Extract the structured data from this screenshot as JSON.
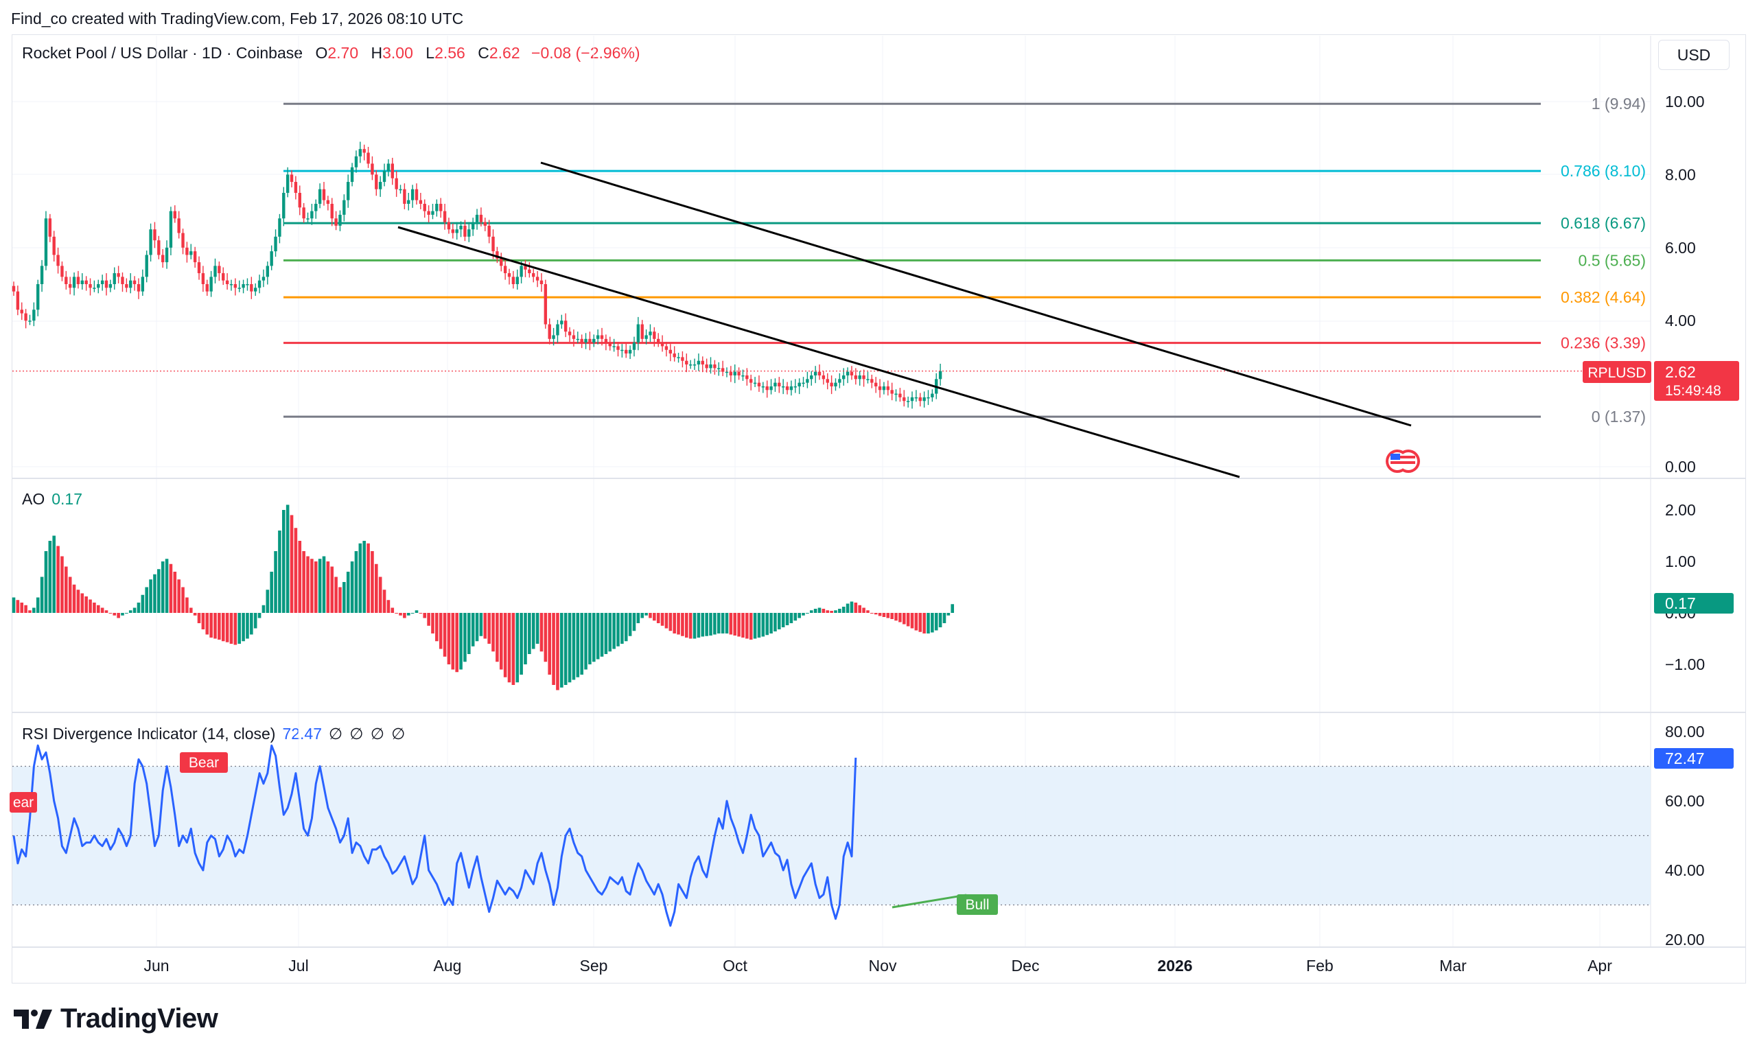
{
  "header": {
    "created_by": "Find_co created with TradingView.com, Feb 17, 2026 08:10 UTC",
    "symbol_title": "Rocket Pool / US Dollar · 1D · Coinbase",
    "ohlc": {
      "o_label": "O",
      "o": "2.70",
      "h_label": "H",
      "h": "3.00",
      "l_label": "L",
      "l": "2.56",
      "c_label": "C",
      "c": "2.62",
      "change": "−0.08 (−2.96%)"
    },
    "currency_button": "USD"
  },
  "price_pane": {
    "axis_ticks": [
      "10.00",
      "8.00",
      "6.00",
      "4.00",
      "0.00"
    ],
    "symbol_tag": "RPLUSD",
    "last_price": "2.62",
    "countdown": "15:49:48",
    "fib_levels": [
      {
        "label": "1 (9.94)",
        "value": 9.94,
        "color": "#787b86"
      },
      {
        "label": "0.786 (8.10)",
        "value": 8.1,
        "color": "#00bcd4"
      },
      {
        "label": "0.618 (6.67)",
        "value": 6.67,
        "color": "#089981"
      },
      {
        "label": "0.5 (5.65)",
        "value": 5.65,
        "color": "#4caf50"
      },
      {
        "label": "0.382 (4.64)",
        "value": 4.64,
        "color": "#ff9800"
      },
      {
        "label": "0.236 (3.39)",
        "value": 3.39,
        "color": "#f23645"
      },
      {
        "label": "0 (1.37)",
        "value": 1.37,
        "color": "#787b86"
      }
    ]
  },
  "ao_pane": {
    "title": "AO",
    "value": "0.17",
    "axis_ticks": [
      "2.00",
      "1.00",
      "0.00",
      "−1.00"
    ]
  },
  "rsi_pane": {
    "title": "RSI Divergence Indicator (14, close)",
    "value": "72.47",
    "extra": "∅ ∅ ∅ ∅",
    "axis_ticks": [
      "80.00",
      "60.00",
      "40.00",
      "20.00"
    ],
    "labels": {
      "bear_left": "ear",
      "bear": "Bear",
      "bull": "Bull"
    }
  },
  "time_axis": [
    "Jun",
    "Jul",
    "Aug",
    "Sep",
    "Oct",
    "Nov",
    "Dec",
    "2026",
    "Feb",
    "Mar",
    "Apr"
  ],
  "brand": "TradingView",
  "colors": {
    "up": "#089981",
    "down": "#f23645",
    "rsi": "#2962ff",
    "trend": "#000000"
  },
  "chart_data": [
    {
      "type": "candlestick",
      "title": "Rocket Pool / US Dollar · 1D · Coinbase",
      "ylim": [
        0,
        10
      ],
      "close": [
        4.8,
        4.3,
        4.2,
        4.0,
        4.0,
        4.3,
        5.0,
        5.5,
        6.8,
        6.3,
        5.8,
        5.5,
        5.2,
        5.0,
        4.9,
        5.2,
        5.0,
        5.1,
        5.0,
        4.9,
        4.9,
        5.0,
        5.1,
        4.9,
        5.0,
        5.3,
        5.2,
        5.0,
        4.9,
        5.1,
        5.0,
        4.8,
        5.2,
        5.8,
        6.5,
        6.2,
        5.8,
        5.6,
        6.0,
        7.0,
        6.8,
        6.4,
        6.0,
        5.8,
        5.9,
        5.6,
        5.3,
        5.0,
        4.8,
        5.2,
        5.5,
        5.3,
        5.1,
        5.0,
        5.0,
        4.9,
        4.9,
        5.0,
        5.0,
        4.8,
        4.9,
        5.1,
        5.2,
        5.5,
        5.9,
        6.3,
        6.8,
        7.5,
        8.0,
        7.8,
        7.5,
        7.1,
        6.8,
        6.8,
        7.0,
        7.2,
        7.6,
        7.3,
        7.2,
        6.8,
        6.6,
        6.9,
        7.3,
        7.8,
        8.2,
        8.5,
        8.7,
        8.6,
        8.3,
        8.0,
        7.6,
        7.8,
        8.1,
        8.3,
        7.9,
        7.6,
        7.6,
        7.2,
        7.3,
        7.6,
        7.3,
        7.2,
        7.0,
        6.9,
        7.0,
        7.2,
        7.0,
        6.7,
        6.5,
        6.4,
        6.5,
        6.6,
        6.3,
        6.5,
        6.7,
        6.9,
        6.7,
        6.6,
        6.3,
        5.9,
        5.7,
        5.5,
        5.3,
        5.2,
        5.0,
        5.2,
        5.5,
        5.4,
        5.3,
        5.2,
        5.1,
        5.0,
        3.9,
        3.5,
        3.6,
        3.9,
        4.0,
        3.7,
        3.6,
        3.5,
        3.5,
        3.4,
        3.5,
        3.4,
        3.5,
        3.6,
        3.5,
        3.4,
        3.3,
        3.3,
        3.2,
        3.2,
        3.1,
        3.2,
        3.4,
        3.9,
        3.5,
        3.6,
        3.7,
        3.5,
        3.4,
        3.3,
        3.2,
        3.1,
        3.0,
        3.0,
        2.9,
        2.8,
        2.8,
        2.8,
        2.9,
        2.8,
        2.7,
        2.8,
        2.7,
        2.7,
        2.6,
        2.6,
        2.5,
        2.6,
        2.5,
        2.5,
        2.4,
        2.3,
        2.3,
        2.2,
        2.2,
        2.1,
        2.2,
        2.3,
        2.2,
        2.2,
        2.1,
        2.2,
        2.2,
        2.3,
        2.3,
        2.4,
        2.5,
        2.6,
        2.5,
        2.4,
        2.3,
        2.2,
        2.3,
        2.4,
        2.5,
        2.6,
        2.5,
        2.4,
        2.5,
        2.4,
        2.4,
        2.3,
        2.2,
        2.1,
        2.2,
        2.1,
        2.0,
        2.0,
        1.9,
        1.8,
        1.8,
        1.9,
        1.9,
        1.8,
        1.9,
        1.9,
        2.0,
        2.4,
        2.62
      ]
    },
    {
      "type": "bar",
      "title": "AO",
      "ylim": [
        -1.5,
        2.2
      ],
      "values": [
        0.3,
        0.25,
        0.2,
        0.15,
        0.05,
        0.1,
        0.3,
        0.7,
        1.2,
        1.4,
        1.5,
        1.3,
        1.1,
        0.9,
        0.7,
        0.55,
        0.45,
        0.38,
        0.32,
        0.26,
        0.2,
        0.15,
        0.1,
        0.05,
        0.0,
        -0.05,
        -0.1,
        -0.05,
        0.0,
        0.05,
        0.1,
        0.2,
        0.35,
        0.5,
        0.65,
        0.75,
        0.85,
        1.0,
        1.05,
        0.95,
        0.8,
        0.65,
        0.5,
        0.3,
        0.1,
        -0.05,
        -0.2,
        -0.32,
        -0.42,
        -0.48,
        -0.5,
        -0.52,
        -0.55,
        -0.57,
        -0.6,
        -0.62,
        -0.6,
        -0.55,
        -0.5,
        -0.42,
        -0.3,
        -0.1,
        0.15,
        0.45,
        0.8,
        1.2,
        1.6,
        2.0,
        2.1,
        1.9,
        1.65,
        1.4,
        1.2,
        1.1,
        1.05,
        1.0,
        1.05,
        1.1,
        1.0,
        0.9,
        0.7,
        0.5,
        0.6,
        0.8,
        1.0,
        1.2,
        1.35,
        1.4,
        1.35,
        1.2,
        0.95,
        0.7,
        0.45,
        0.25,
        0.1,
        0.0,
        -0.05,
        -0.1,
        -0.05,
        0.0,
        0.05,
        0.0,
        -0.1,
        -0.25,
        -0.4,
        -0.55,
        -0.7,
        -0.85,
        -1.0,
        -1.1,
        -1.15,
        -1.1,
        -0.95,
        -0.8,
        -0.65,
        -0.55,
        -0.45,
        -0.5,
        -0.6,
        -0.75,
        -0.95,
        -1.1,
        -1.25,
        -1.35,
        -1.4,
        -1.35,
        -1.2,
        -1.0,
        -0.8,
        -0.7,
        -0.6,
        -0.75,
        -0.95,
        -1.2,
        -1.4,
        -1.5,
        -1.45,
        -1.4,
        -1.35,
        -1.3,
        -1.25,
        -1.2,
        -1.1,
        -1.0,
        -0.95,
        -0.9,
        -0.85,
        -0.8,
        -0.75,
        -0.7,
        -0.65,
        -0.6,
        -0.55,
        -0.45,
        -0.35,
        -0.2,
        -0.1,
        -0.05,
        -0.1,
        -0.15,
        -0.2,
        -0.25,
        -0.3,
        -0.35,
        -0.4,
        -0.42,
        -0.45,
        -0.48,
        -0.5,
        -0.5,
        -0.48,
        -0.46,
        -0.45,
        -0.44,
        -0.42,
        -0.4,
        -0.4,
        -0.4,
        -0.42,
        -0.44,
        -0.46,
        -0.48,
        -0.5,
        -0.52,
        -0.5,
        -0.48,
        -0.46,
        -0.43,
        -0.4,
        -0.36,
        -0.32,
        -0.28,
        -0.24,
        -0.2,
        -0.15,
        -0.1,
        -0.05,
        0.0,
        0.05,
        0.08,
        0.1,
        0.08,
        0.05,
        0.04,
        0.05,
        0.08,
        0.12,
        0.18,
        0.22,
        0.2,
        0.15,
        0.1,
        0.05,
        0.0,
        -0.03,
        -0.06,
        -0.08,
        -0.1,
        -0.12,
        -0.15,
        -0.18,
        -0.22,
        -0.26,
        -0.3,
        -0.34,
        -0.37,
        -0.4,
        -0.4,
        -0.38,
        -0.34,
        -0.28,
        -0.2,
        -0.05,
        0.17
      ]
    },
    {
      "type": "line",
      "title": "RSI Divergence Indicator (14, close)",
      "ylim": [
        20,
        80
      ],
      "bands": [
        30,
        50,
        70
      ],
      "values": [
        50,
        42,
        46,
        44,
        55,
        70,
        76,
        72,
        74,
        68,
        60,
        55,
        47,
        45,
        50,
        55,
        52,
        47,
        48,
        48,
        50,
        48,
        47,
        49,
        46,
        48,
        52,
        50,
        47,
        50,
        65,
        72,
        70,
        65,
        56,
        47,
        50,
        63,
        70,
        64,
        56,
        47,
        50,
        48,
        52,
        45,
        42,
        40,
        48,
        50,
        49,
        44,
        46,
        50,
        48,
        44,
        46,
        45,
        50,
        56,
        62,
        68,
        65,
        68,
        76,
        73,
        64,
        56,
        58,
        62,
        68,
        60,
        52,
        50,
        55,
        65,
        70,
        64,
        58,
        55,
        52,
        48,
        50,
        55,
        45,
        48,
        47,
        44,
        42,
        46,
        46,
        47,
        44,
        42,
        39,
        40,
        42,
        44,
        40,
        36,
        38,
        44,
        50,
        40,
        38,
        36,
        33,
        30,
        32,
        30,
        42,
        45,
        40,
        35,
        40,
        44,
        38,
        33,
        28,
        32,
        37,
        35,
        33,
        35,
        34,
        32,
        35,
        40,
        38,
        36,
        42,
        45,
        40,
        36,
        30,
        35,
        44,
        50,
        52,
        48,
        45,
        44,
        40,
        38,
        36,
        34,
        33,
        35,
        38,
        37,
        36,
        38,
        34,
        33,
        38,
        42,
        40,
        37,
        35,
        33,
        36,
        33,
        28,
        24,
        28,
        36,
        34,
        32,
        38,
        42,
        44,
        40,
        38,
        44,
        50,
        55,
        52,
        60,
        55,
        52,
        48,
        45,
        50,
        56,
        52,
        50,
        44,
        46,
        48,
        45,
        44,
        40,
        43,
        36,
        32,
        35,
        38,
        40,
        42,
        36,
        32,
        33,
        38,
        30,
        26,
        30,
        44,
        48,
        44,
        72.47
      ]
    }
  ]
}
